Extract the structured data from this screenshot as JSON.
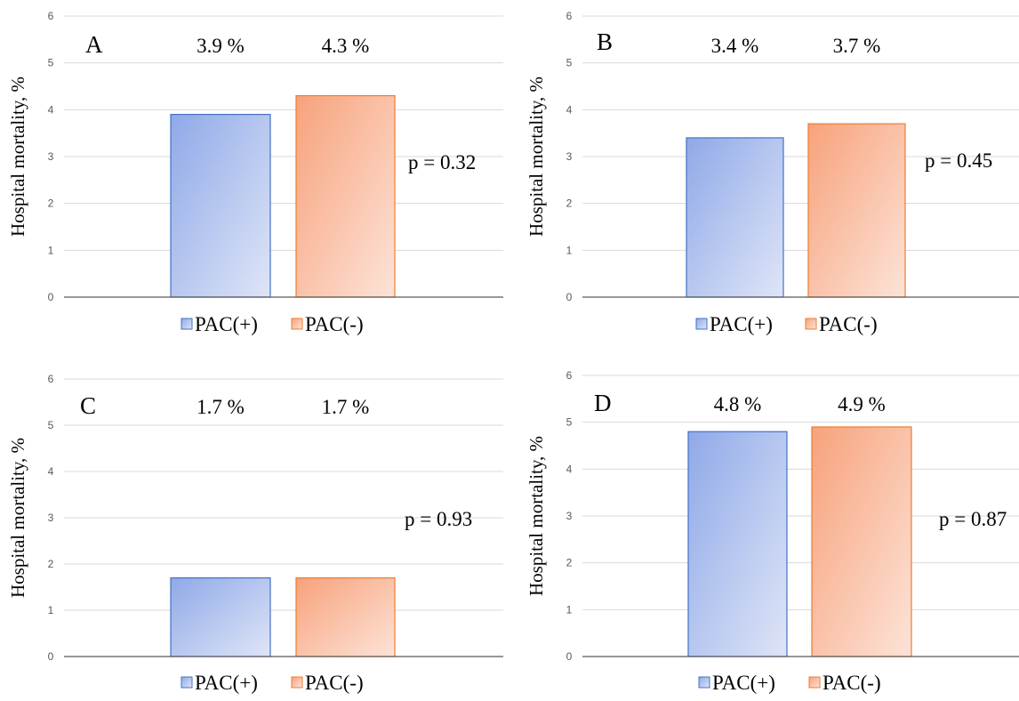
{
  "chart_data": [
    {
      "type": "bar",
      "panel_label": "A",
      "ylabel": "Hospital mortality, %",
      "ylim": [
        0,
        6
      ],
      "yticks": [
        "0",
        "1",
        "2",
        "3",
        "4",
        "5",
        "6"
      ],
      "grid": true,
      "legend_position": "bottom",
      "series": [
        {
          "name": "PAC(+)",
          "value": 3.9,
          "label": "3.9 %",
          "color_top": "#8fa9e8",
          "color_bottom": "#dfe5f7",
          "border": "#4472c4"
        },
        {
          "name": "PAC(-)",
          "value": 4.3,
          "label": "4.3 %",
          "color_top": "#f7a27b",
          "color_bottom": "#fde3d8",
          "border": "#ed7d31"
        }
      ],
      "annotation": "p = 0.32"
    },
    {
      "type": "bar",
      "panel_label": "B",
      "ylabel": "Hospital mortality, %",
      "ylim": [
        0,
        6
      ],
      "yticks": [
        "0",
        "1",
        "2",
        "3",
        "4",
        "5",
        "6"
      ],
      "grid": true,
      "legend_position": "bottom",
      "series": [
        {
          "name": "PAC(+)",
          "value": 3.4,
          "label": "3.4 %",
          "color_top": "#8fa9e8",
          "color_bottom": "#dfe5f7",
          "border": "#4472c4"
        },
        {
          "name": "PAC(-)",
          "value": 3.7,
          "label": "3.7 %",
          "color_top": "#f7a27b",
          "color_bottom": "#fde3d8",
          "border": "#ed7d31"
        }
      ],
      "annotation": "p = 0.45"
    },
    {
      "type": "bar",
      "panel_label": "C",
      "ylabel": "Hospital mortality, %",
      "ylim": [
        0,
        6
      ],
      "yticks": [
        "0",
        "1",
        "2",
        "3",
        "4",
        "5",
        "6"
      ],
      "grid": true,
      "legend_position": "bottom",
      "series": [
        {
          "name": "PAC(+)",
          "value": 1.7,
          "label": "1.7 %",
          "color_top": "#8fa9e8",
          "color_bottom": "#dfe5f7",
          "border": "#4472c4"
        },
        {
          "name": "PAC(-)",
          "value": 1.7,
          "label": "1.7 %",
          "color_top": "#f7a27b",
          "color_bottom": "#fde3d8",
          "border": "#ed7d31"
        }
      ],
      "annotation": "p = 0.93"
    },
    {
      "type": "bar",
      "panel_label": "D",
      "ylabel": "Hospital mortality, %",
      "ylim": [
        0,
        6
      ],
      "yticks": [
        "0",
        "1",
        "2",
        "3",
        "4",
        "5",
        "6"
      ],
      "grid": true,
      "legend_position": "bottom",
      "series": [
        {
          "name": "PAC(+)",
          "value": 4.8,
          "label": "4.8 %",
          "color_top": "#8fa9e8",
          "color_bottom": "#dfe5f7",
          "border": "#4472c4"
        },
        {
          "name": "PAC(-)",
          "value": 4.9,
          "label": "4.9 %",
          "color_top": "#f7a27b",
          "color_bottom": "#fde3d8",
          "border": "#ed7d31"
        }
      ],
      "annotation": "p = 0.87"
    }
  ]
}
